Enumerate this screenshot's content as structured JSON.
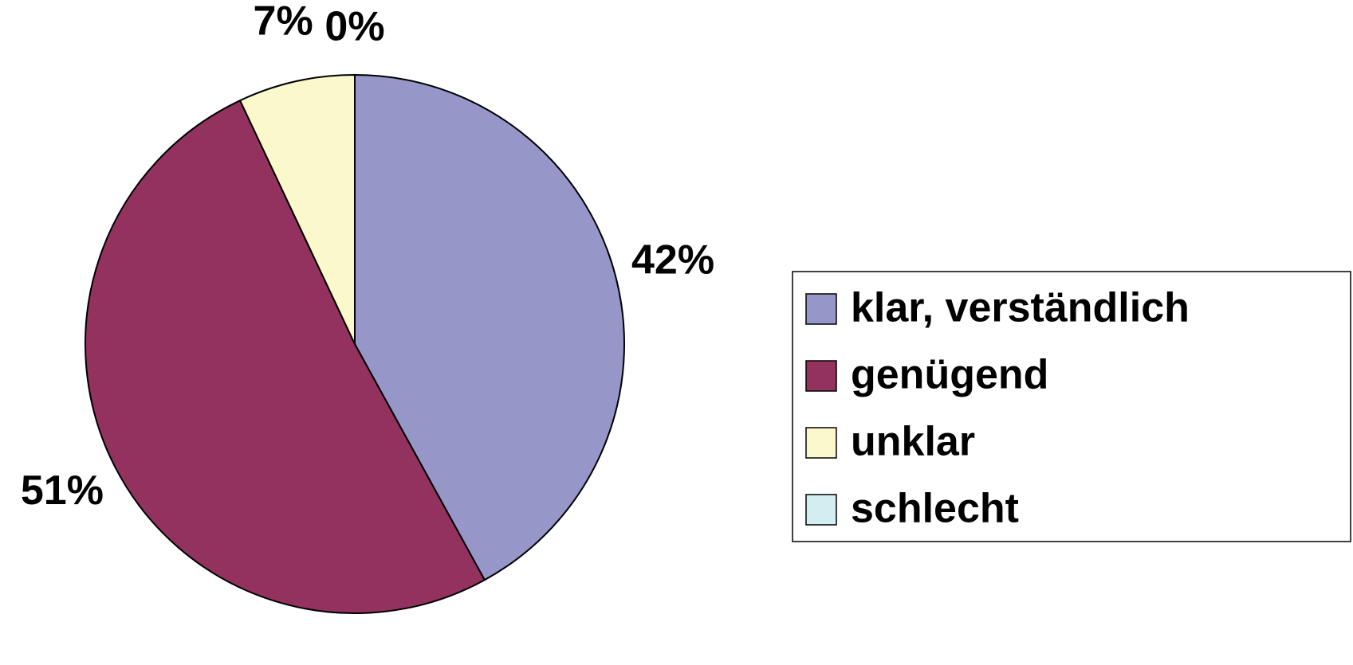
{
  "chart_data": {
    "type": "pie",
    "categories": [
      "klar, verständlich",
      "genügend",
      "unklar",
      "schlecht"
    ],
    "values": [
      42,
      51,
      7,
      0
    ],
    "value_labels": [
      "42%",
      "51%",
      "7%",
      "0%"
    ],
    "colors": [
      "#9696c8",
      "#93325e",
      "#fbf8cc",
      "#d2eef0"
    ],
    "legend": "right"
  }
}
